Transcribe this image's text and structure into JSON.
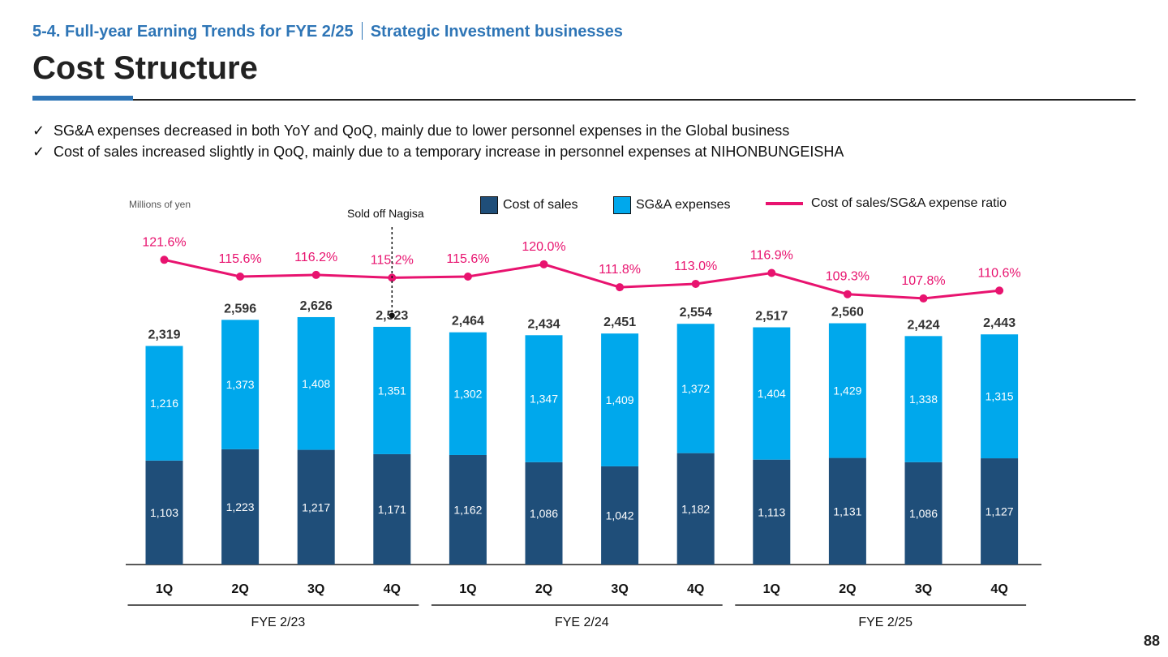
{
  "header": {
    "section": "5-4. Full-year Earning Trends for FYE 2/25",
    "subsection": "Strategic Investment businesses",
    "title": "Cost Structure"
  },
  "bullets": [
    "SG&A expenses decreased in both YoY and QoQ, mainly due to lower personnel expenses in the Global business",
    "Cost of sales increased slightly in QoQ, mainly due to a temporary increase in personnel expenses at NIHONBUNGEISHA"
  ],
  "check_glyph": "✓",
  "page_number": "88",
  "colors": {
    "cost": "#1f4e79",
    "sga": "#00a8ec",
    "ratio": "#e8136f",
    "title_blue": "#2e75b6"
  },
  "chart_data": {
    "type": "bar",
    "stacked": true,
    "units": "Millions of yen",
    "categories": [
      "1Q",
      "2Q",
      "3Q",
      "4Q",
      "1Q",
      "2Q",
      "3Q",
      "4Q",
      "1Q",
      "2Q",
      "3Q",
      "4Q"
    ],
    "groups": [
      {
        "label": "FYE 2/23",
        "range": [
          0,
          3
        ]
      },
      {
        "label": "FYE 2/24",
        "range": [
          4,
          7
        ]
      },
      {
        "label": "FYE 2/25",
        "range": [
          8,
          11
        ]
      }
    ],
    "series": [
      {
        "name": "Cost of sales",
        "values": [
          1103,
          1223,
          1217,
          1171,
          1162,
          1086,
          1042,
          1182,
          1113,
          1131,
          1086,
          1127
        ]
      },
      {
        "name": "SG&A expenses",
        "values": [
          1216,
          1373,
          1408,
          1351,
          1302,
          1347,
          1409,
          1372,
          1404,
          1429,
          1338,
          1315
        ]
      }
    ],
    "totals": [
      2319,
      2596,
      2626,
      2523,
      2464,
      2434,
      2451,
      2554,
      2517,
      2560,
      2424,
      2443
    ],
    "line_series": {
      "name": "Cost of sales/SG&A expense ratio",
      "values": [
        121.6,
        115.6,
        116.2,
        115.2,
        115.6,
        120.0,
        111.8,
        113.0,
        116.9,
        109.3,
        107.8,
        110.6
      ],
      "labels": [
        "121.6%",
        "115.6%",
        "116.2%",
        "115.2%",
        "115.6%",
        "120.0%",
        "111.8%",
        "113.0%",
        "116.9%",
        "109.3%",
        "107.8%",
        "110.6%"
      ]
    },
    "annotation": {
      "text": "Sold off Nagisa",
      "category_index": 3
    },
    "legend_position": "top"
  }
}
